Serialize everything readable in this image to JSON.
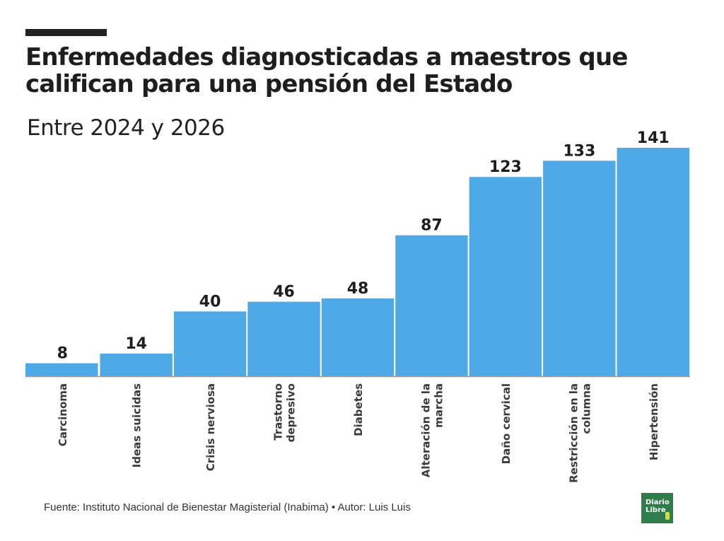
{
  "header": {
    "title": "Enfermedades diagnosticadas a maestros que califican para una pensión del Estado",
    "subtitle": "Entre 2024 y 2026"
  },
  "footer": {
    "source": "Fuente: Instituto Nacional de Bienestar Magisterial (Inabima) • Autor: Luis Luis"
  },
  "logo": {
    "line1": "Diario",
    "line2": "Libre"
  },
  "colors": {
    "bar": "#4FA9E6",
    "text": "#1e1e1e",
    "axis": "#999999",
    "logo_bg": "#2e7d4a"
  },
  "chart_data": {
    "type": "bar",
    "title": "Enfermedades diagnosticadas a maestros que califican para una pensión del Estado",
    "subtitle": "Entre 2024 y 2026",
    "xlabel": "",
    "ylabel": "",
    "categories": [
      [
        "Carcinoma"
      ],
      [
        "Ideas suicidas"
      ],
      [
        "Crisis nerviosa"
      ],
      [
        "Trastorno",
        "depresivo"
      ],
      [
        "Diabetes"
      ],
      [
        "Alteración de la",
        "marcha"
      ],
      [
        "Daño cervical"
      ],
      [
        "Restricción en la",
        "columna"
      ],
      [
        "Hipertensión"
      ]
    ],
    "values": [
      8,
      14,
      40,
      46,
      48,
      87,
      123,
      133,
      141
    ],
    "ylim": [
      0,
      141
    ],
    "grid": false,
    "legend": "none",
    "data_labels": true
  }
}
